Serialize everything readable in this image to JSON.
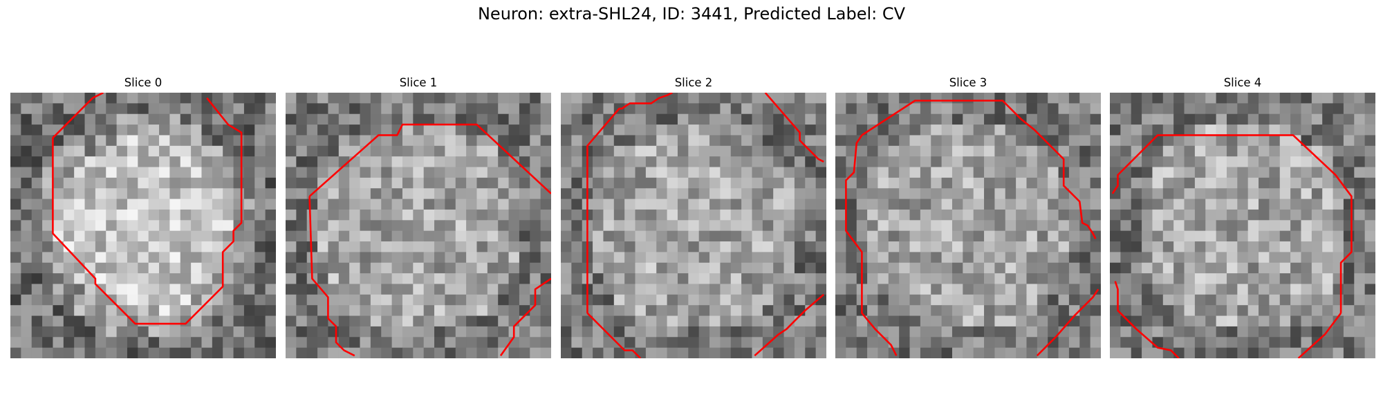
{
  "figure": {
    "title": "Neuron: extra-SHL24, ID: 3441, Predicted Label: CV"
  },
  "panels": [
    {
      "title": "Slice 0",
      "seed": 11,
      "bright_center": true,
      "contours": [
        [
          [
            0.31,
            0.02
          ],
          [
            0.35,
            0.0
          ]
        ],
        [
          [
            0.31,
            0.02
          ],
          [
            0.16,
            0.17
          ],
          [
            0.16,
            0.53
          ],
          [
            0.32,
            0.7
          ],
          [
            0.32,
            0.72
          ],
          [
            0.47,
            0.87
          ],
          [
            0.66,
            0.87
          ],
          [
            0.8,
            0.73
          ],
          [
            0.8,
            0.6
          ],
          [
            0.84,
            0.56
          ],
          [
            0.84,
            0.52
          ],
          [
            0.87,
            0.49
          ],
          [
            0.87,
            0.15
          ],
          [
            0.82,
            0.12
          ],
          [
            0.74,
            0.02
          ]
        ]
      ]
    },
    {
      "title": "Slice 1",
      "seed": 23,
      "bright_center": false,
      "contours": [
        [
          [
            0.09,
            0.39
          ],
          [
            0.35,
            0.16
          ],
          [
            0.42,
            0.16
          ],
          [
            0.44,
            0.12
          ],
          [
            0.72,
            0.12
          ],
          [
            1.0,
            0.38
          ]
        ],
        [
          [
            0.09,
            0.39
          ],
          [
            0.1,
            0.7
          ],
          [
            0.16,
            0.77
          ],
          [
            0.16,
            0.85
          ],
          [
            0.19,
            0.88
          ],
          [
            0.19,
            0.94
          ],
          [
            0.22,
            0.97
          ],
          [
            0.26,
            0.99
          ]
        ],
        [
          [
            0.81,
            0.99
          ],
          [
            0.86,
            0.92
          ],
          [
            0.86,
            0.88
          ],
          [
            0.9,
            0.84
          ],
          [
            0.94,
            0.8
          ],
          [
            0.94,
            0.74
          ],
          [
            1.0,
            0.7
          ]
        ]
      ]
    },
    {
      "title": "Slice 2",
      "seed": 37,
      "bright_center": false,
      "contours": [
        [
          [
            0.1,
            0.83
          ],
          [
            0.1,
            0.2
          ],
          [
            0.22,
            0.06
          ],
          [
            0.23,
            0.06
          ],
          [
            0.26,
            0.04
          ],
          [
            0.34,
            0.04
          ],
          [
            0.37,
            0.02
          ],
          [
            0.4,
            0.01
          ],
          [
            0.42,
            0.0
          ]
        ],
        [
          [
            0.1,
            0.83
          ],
          [
            0.24,
            0.97
          ],
          [
            0.27,
            0.97
          ],
          [
            0.3,
            1.0
          ]
        ],
        [
          [
            0.77,
            0.0
          ],
          [
            0.9,
            0.15
          ],
          [
            0.9,
            0.18
          ],
          [
            0.97,
            0.25
          ],
          [
            0.99,
            0.26
          ]
        ],
        [
          [
            0.73,
            0.99
          ],
          [
            0.82,
            0.91
          ],
          [
            0.85,
            0.89
          ],
          [
            0.88,
            0.86
          ],
          [
            0.92,
            0.82
          ],
          [
            0.99,
            0.76
          ]
        ]
      ]
    },
    {
      "title": "Slice 3",
      "seed": 51,
      "bright_center": false,
      "contours": [
        [
          [
            0.1,
            0.16
          ],
          [
            0.3,
            0.03
          ],
          [
            0.63,
            0.03
          ],
          [
            0.7,
            0.1
          ],
          [
            0.75,
            0.14
          ],
          [
            0.86,
            0.25
          ],
          [
            0.86,
            0.35
          ],
          [
            0.89,
            0.38
          ],
          [
            0.92,
            0.41
          ],
          [
            0.93,
            0.49
          ],
          [
            0.95,
            0.5
          ],
          [
            0.97,
            0.53
          ],
          [
            0.98,
            0.55
          ]
        ],
        [
          [
            0.1,
            0.16
          ],
          [
            0.08,
            0.19
          ],
          [
            0.07,
            0.3
          ],
          [
            0.04,
            0.33
          ],
          [
            0.04,
            0.52
          ],
          [
            0.1,
            0.6
          ],
          [
            0.1,
            0.83
          ],
          [
            0.15,
            0.89
          ],
          [
            0.21,
            0.95
          ],
          [
            0.23,
            0.99
          ]
        ],
        [
          [
            0.76,
            0.99
          ],
          [
            0.83,
            0.92
          ],
          [
            0.9,
            0.84
          ],
          [
            0.97,
            0.77
          ],
          [
            0.99,
            0.74
          ]
        ]
      ]
    },
    {
      "title": "Slice 4",
      "seed": 67,
      "bright_center": false,
      "contours": [
        [
          [
            0.01,
            0.38
          ],
          [
            0.03,
            0.35
          ],
          [
            0.03,
            0.31
          ],
          [
            0.1,
            0.24
          ],
          [
            0.18,
            0.16
          ],
          [
            0.69,
            0.16
          ],
          [
            0.85,
            0.31
          ],
          [
            0.91,
            0.39
          ],
          [
            0.91,
            0.6
          ],
          [
            0.87,
            0.64
          ],
          [
            0.87,
            0.83
          ]
        ],
        [
          [
            0.02,
            0.71
          ],
          [
            0.03,
            0.74
          ],
          [
            0.03,
            0.82
          ],
          [
            0.1,
            0.89
          ],
          [
            0.18,
            0.96
          ],
          [
            0.23,
            0.97
          ],
          [
            0.26,
            1.0
          ]
        ],
        [
          [
            0.71,
            1.0
          ],
          [
            0.81,
            0.91
          ],
          [
            0.87,
            0.83
          ]
        ]
      ]
    }
  ],
  "colors": {
    "contour": "#ff0000",
    "background": "#ffffff"
  }
}
